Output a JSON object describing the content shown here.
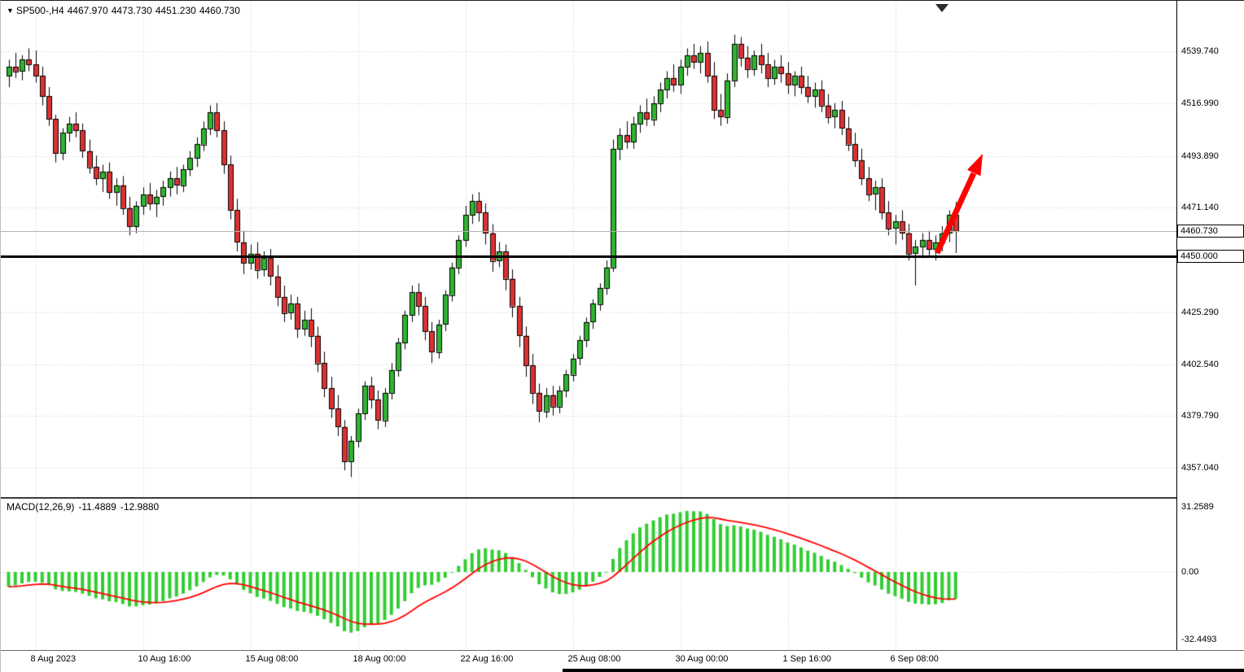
{
  "title_bar": {
    "dropdown_icon": "▼",
    "symbol_timeframe": "SP500-,H4",
    "open": "4467.970",
    "high": "4473.730",
    "low": "4451.230",
    "close": "4460.730"
  },
  "price_axis": {
    "current_tag": {
      "text": "4460.730",
      "price": 4460.73
    },
    "support_tag": {
      "text": "4450.000",
      "price": 4450.0
    }
  },
  "macd_panel": {
    "label": "MACD(12,26,9)",
    "value_main": "-11.4889",
    "value_signal": "-12.9880"
  },
  "colors": {
    "up_candle": "#2eb52e",
    "down_candle": "#dc3232",
    "candle_outline": "#000000",
    "wick": "#000000",
    "grid": "#cfcfcf",
    "histogram": "#32cd32",
    "signal_line": "#ff0000",
    "support_line": "#000000",
    "current_price_line": "#b3b3b3",
    "arrow": "#ff0000"
  },
  "chart_data": {
    "type": "candlestick",
    "symbol": "SP500-",
    "timeframe": "H4",
    "price_range_visible": [
      4344.3,
      4561.9
    ],
    "grid": true,
    "price_ticks": [
      {
        "label": "4539.740",
        "price": 4539.74
      },
      {
        "label": "4516.990",
        "price": 4516.99
      },
      {
        "label": "4493.890",
        "price": 4493.89
      },
      {
        "label": "4471.140",
        "price": 4471.14
      },
      {
        "label": "4425.290",
        "price": 4425.29
      },
      {
        "label": "4402.540",
        "price": 4402.54
      },
      {
        "label": "4379.790",
        "price": 4379.79
      },
      {
        "label": "4357.040",
        "price": 4357.04
      }
    ],
    "time_ticks": [
      {
        "label": "8 Aug 2023",
        "bar": 4
      },
      {
        "label": "10 Aug 16:00",
        "bar": 20
      },
      {
        "label": "15 Aug 08:00",
        "bar": 36
      },
      {
        "label": "18 Aug 00:00",
        "bar": 52
      },
      {
        "label": "22 Aug 16:00",
        "bar": 68
      },
      {
        "label": "25 Aug 08:00",
        "bar": 84
      },
      {
        "label": "30 Aug 00:00",
        "bar": 100
      },
      {
        "label": "1 Sep 16:00",
        "bar": 116
      },
      {
        "label": "6 Sep 08:00",
        "bar": 132
      }
    ],
    "candles": [
      [
        4529,
        4536,
        4524,
        4533
      ],
      [
        4533,
        4539,
        4528,
        4531
      ],
      [
        4531,
        4538,
        4527,
        4536
      ],
      [
        4536,
        4541,
        4531,
        4534
      ],
      [
        4534,
        4540,
        4526,
        4529
      ],
      [
        4529,
        4533,
        4516,
        4520
      ],
      [
        4520,
        4524,
        4507,
        4510
      ],
      [
        4510,
        4512,
        4491,
        4495
      ],
      [
        4495,
        4506,
        4492,
        4504
      ],
      [
        4504,
        4511,
        4500,
        4508
      ],
      [
        4508,
        4513,
        4502,
        4505
      ],
      [
        4505,
        4508,
        4493,
        4496
      ],
      [
        4496,
        4501,
        4486,
        4489
      ],
      [
        4489,
        4494,
        4481,
        4484
      ],
      [
        4484,
        4490,
        4478,
        4487
      ],
      [
        4487,
        4491,
        4475,
        4478
      ],
      [
        4478,
        4484,
        4472,
        4481
      ],
      [
        4481,
        4485,
        4468,
        4471
      ],
      [
        4471,
        4476,
        4459,
        4463
      ],
      [
        4463,
        4474,
        4460,
        4472
      ],
      [
        4472,
        4480,
        4468,
        4477
      ],
      [
        4477,
        4482,
        4470,
        4473
      ],
      [
        4473,
        4479,
        4467,
        4476
      ],
      [
        4476,
        4483,
        4472,
        4480
      ],
      [
        4480,
        4487,
        4476,
        4484
      ],
      [
        4484,
        4489,
        4477,
        4481
      ],
      [
        4481,
        4490,
        4478,
        4488
      ],
      [
        4488,
        4496,
        4485,
        4493
      ],
      [
        4493,
        4502,
        4489,
        4499
      ],
      [
        4499,
        4509,
        4496,
        4506
      ],
      [
        4506,
        4516,
        4503,
        4513
      ],
      [
        4513,
        4517,
        4502,
        4505
      ],
      [
        4505,
        4509,
        4486,
        4490
      ],
      [
        4490,
        4494,
        4466,
        4470
      ],
      [
        4470,
        4475,
        4452,
        4456
      ],
      [
        4456,
        4461,
        4442,
        4447
      ],
      [
        4447,
        4455,
        4444,
        4451
      ],
      [
        4451,
        4456,
        4440,
        4444
      ],
      [
        4444,
        4452,
        4441,
        4449
      ],
      [
        4449,
        4453,
        4437,
        4441
      ],
      [
        4441,
        4446,
        4428,
        4432
      ],
      [
        4432,
        4437,
        4421,
        4425
      ],
      [
        4425,
        4433,
        4422,
        4429
      ],
      [
        4429,
        4432,
        4414,
        4418
      ],
      [
        4418,
        4426,
        4415,
        4422
      ],
      [
        4422,
        4427,
        4410,
        4415
      ],
      [
        4415,
        4419,
        4399,
        4403
      ],
      [
        4403,
        4408,
        4388,
        4392
      ],
      [
        4392,
        4397,
        4379,
        4383
      ],
      [
        4383,
        4389,
        4371,
        4375
      ],
      [
        4375,
        4378,
        4356,
        4360
      ],
      [
        4360,
        4371,
        4353,
        4369
      ],
      [
        4369,
        4383,
        4366,
        4381
      ],
      [
        4381,
        4395,
        4378,
        4393
      ],
      [
        4393,
        4397,
        4383,
        4387
      ],
      [
        4387,
        4391,
        4374,
        4378
      ],
      [
        4378,
        4392,
        4375,
        4390
      ],
      [
        4390,
        4403,
        4387,
        4400
      ],
      [
        4400,
        4414,
        4397,
        4412
      ],
      [
        4412,
        4426,
        4409,
        4424
      ],
      [
        4424,
        4437,
        4421,
        4434
      ],
      [
        4434,
        4438,
        4424,
        4428
      ],
      [
        4428,
        4432,
        4413,
        4417
      ],
      [
        4417,
        4421,
        4403,
        4408
      ],
      [
        4408,
        4422,
        4405,
        4420
      ],
      [
        4420,
        4435,
        4417,
        4433
      ],
      [
        4433,
        4447,
        4430,
        4445
      ],
      [
        4445,
        4459,
        4442,
        4457
      ],
      [
        4457,
        4472,
        4454,
        4468
      ],
      [
        4468,
        4477,
        4464,
        4474
      ],
      [
        4474,
        4478,
        4465,
        4469
      ],
      [
        4469,
        4473,
        4455,
        4460
      ],
      [
        4460,
        4464,
        4443,
        4448
      ],
      [
        4448,
        4456,
        4445,
        4452
      ],
      [
        4452,
        4455,
        4435,
        4440
      ],
      [
        4440,
        4444,
        4423,
        4428
      ],
      [
        4428,
        4432,
        4410,
        4415
      ],
      [
        4415,
        4419,
        4397,
        4402
      ],
      [
        4402,
        4407,
        4385,
        4390
      ],
      [
        4390,
        4394,
        4377,
        4382
      ],
      [
        4382,
        4392,
        4379,
        4389
      ],
      [
        4389,
        4393,
        4380,
        4384
      ],
      [
        4384,
        4393,
        4381,
        4391
      ],
      [
        4391,
        4400,
        4388,
        4398
      ],
      [
        4398,
        4407,
        4395,
        4405
      ],
      [
        4405,
        4415,
        4402,
        4413
      ],
      [
        4413,
        4423,
        4410,
        4421
      ],
      [
        4421,
        4431,
        4418,
        4429
      ],
      [
        4429,
        4438,
        4426,
        4436
      ],
      [
        4436,
        4448,
        4433,
        4445
      ],
      [
        4445,
        4501,
        4443,
        4497
      ],
      [
        4497,
        4506,
        4492,
        4503
      ],
      [
        4503,
        4509,
        4497,
        4500
      ],
      [
        4500,
        4511,
        4497,
        4508
      ],
      [
        4508,
        4516,
        4504,
        4513
      ],
      [
        4513,
        4519,
        4507,
        4510
      ],
      [
        4510,
        4520,
        4507,
        4517
      ],
      [
        4517,
        4526,
        4513,
        4523
      ],
      [
        4523,
        4531,
        4519,
        4528
      ],
      [
        4528,
        4534,
        4522,
        4525
      ],
      [
        4525,
        4536,
        4521,
        4533
      ],
      [
        4533,
        4541,
        4529,
        4538
      ],
      [
        4538,
        4543,
        4532,
        4535
      ],
      [
        4535,
        4542,
        4530,
        4539
      ],
      [
        4539,
        4544,
        4526,
        4529
      ],
      [
        4529,
        4535,
        4510,
        4514
      ],
      [
        4514,
        4521,
        4507,
        4511
      ],
      [
        4511,
        4530,
        4508,
        4527
      ],
      [
        4527,
        4547,
        4524,
        4543
      ],
      [
        4543,
        4546,
        4533,
        4537
      ],
      [
        4537,
        4542,
        4528,
        4532
      ],
      [
        4532,
        4540,
        4529,
        4538
      ],
      [
        4538,
        4543,
        4530,
        4534
      ],
      [
        4534,
        4539,
        4524,
        4528
      ],
      [
        4528,
        4536,
        4525,
        4533
      ],
      [
        4533,
        4538,
        4526,
        4530
      ],
      [
        4530,
        4535,
        4521,
        4525
      ],
      [
        4525,
        4531,
        4520,
        4529
      ],
      [
        4529,
        4533,
        4521,
        4524
      ],
      [
        4524,
        4529,
        4517,
        4520
      ],
      [
        4520,
        4526,
        4515,
        4523
      ],
      [
        4523,
        4527,
        4513,
        4516
      ],
      [
        4516,
        4521,
        4508,
        4511
      ],
      [
        4511,
        4517,
        4506,
        4514
      ],
      [
        4514,
        4518,
        4503,
        4506
      ],
      [
        4506,
        4511,
        4496,
        4499
      ],
      [
        4499,
        4504,
        4489,
        4492
      ],
      [
        4492,
        4497,
        4481,
        4484
      ],
      [
        4484,
        4489,
        4474,
        4477
      ],
      [
        4477,
        4483,
        4470,
        4480
      ],
      [
        4480,
        4484,
        4466,
        4469
      ],
      [
        4469,
        4474,
        4459,
        4462
      ],
      [
        4462,
        4468,
        4455,
        4465
      ],
      [
        4465,
        4470,
        4457,
        4460
      ],
      [
        4460,
        4464,
        4448,
        4451
      ],
      [
        4451,
        4457,
        4437,
        4454
      ],
      [
        4454,
        4460,
        4449,
        4457
      ],
      [
        4457,
        4461,
        4450,
        4453
      ],
      [
        4453,
        4459,
        4448,
        4456
      ],
      [
        4456,
        4463,
        4452,
        4460
      ],
      [
        4460,
        4470,
        4456,
        4468
      ],
      [
        4467.97,
        4473.73,
        4451.23,
        4460.73
      ]
    ],
    "indicator": {
      "type": "MACD",
      "fast": 12,
      "slow": 26,
      "signal_period": 9,
      "current_main": -11.4889,
      "current_signal": -12.988,
      "value_range_visible": [
        -37.4,
        35.0
      ],
      "ticks": [
        {
          "label": "31.2589",
          "value": 31.2589
        },
        {
          "label": "0.00",
          "value": 0
        },
        {
          "label": "-32.4493",
          "value": -32.4493
        }
      ]
    },
    "annotations": {
      "support_line_price": 4450.0,
      "current_price": 4460.73,
      "arrow": {
        "direction": "up",
        "color": "#ff0000"
      }
    }
  }
}
